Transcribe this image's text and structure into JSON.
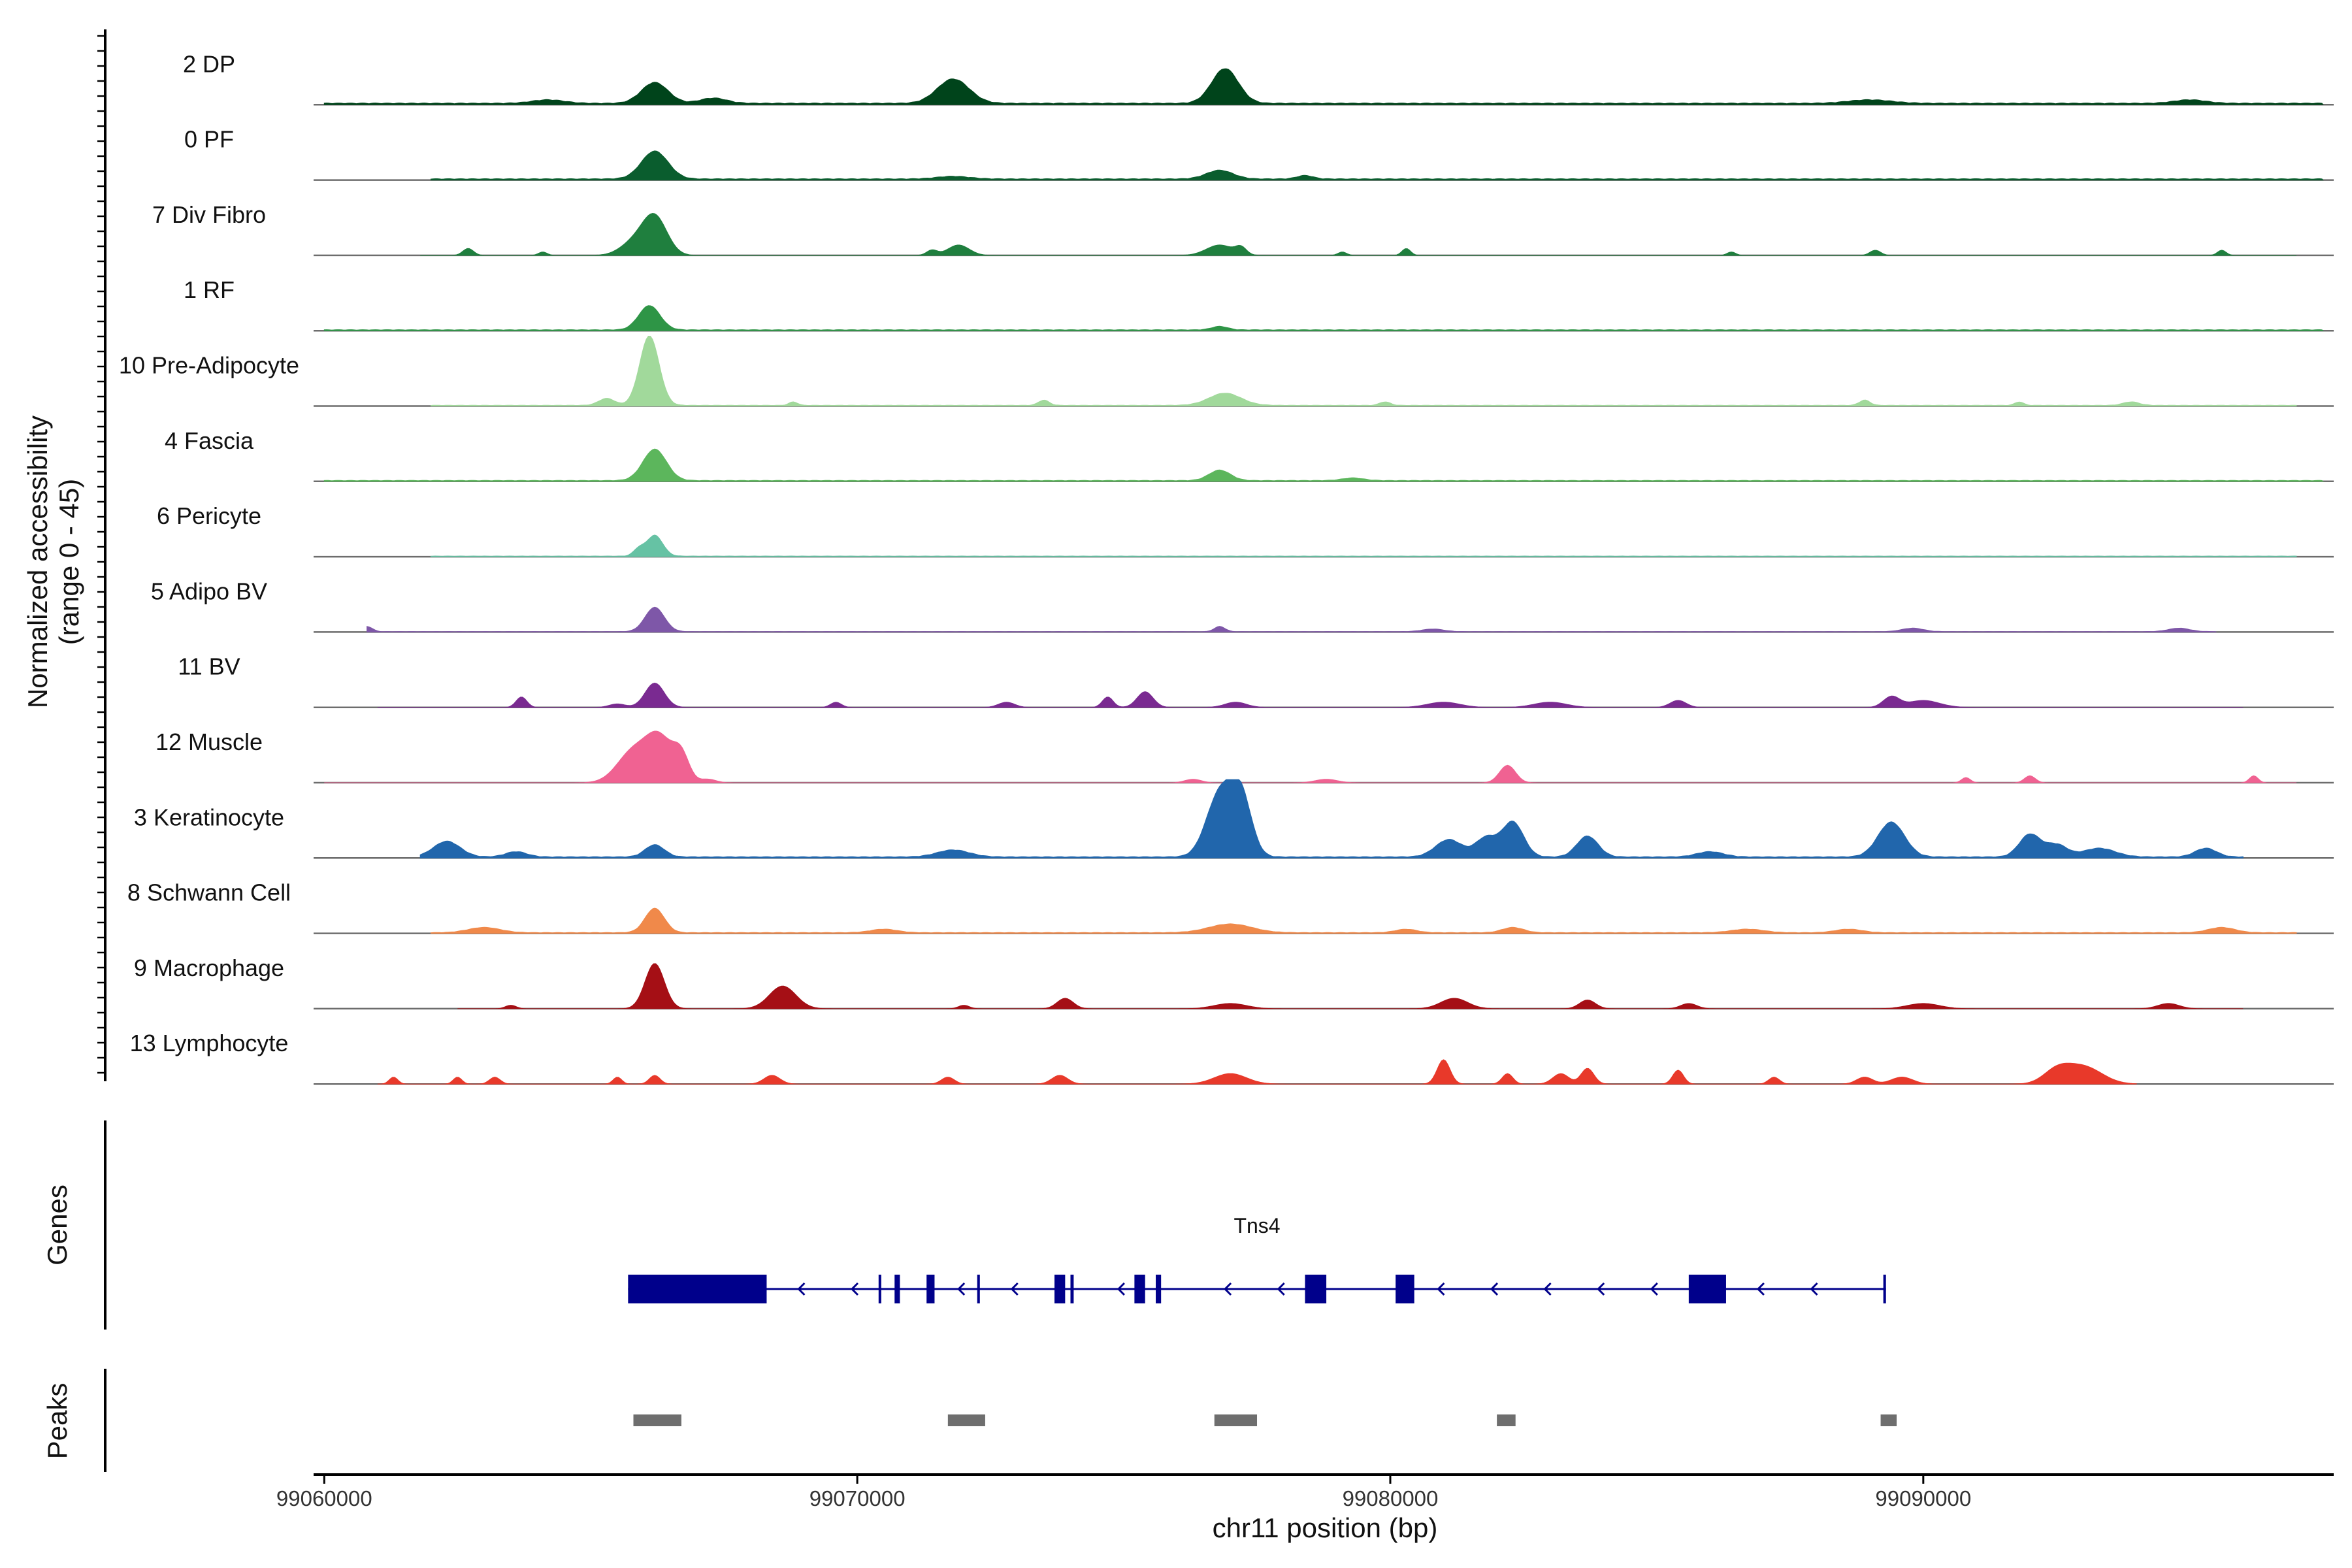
{
  "chart_data": {
    "type": "area",
    "y_axis_title_line1": "Normalized accessibility",
    "y_axis_title_line2": "(range 0 - 45)",
    "ylim": [
      0,
      45
    ],
    "xlabel": "chr11 position (bp)",
    "xlim": [
      99059800,
      99097700
    ],
    "x_ticks": [
      {
        "value": 99060000,
        "label": "99060000"
      },
      {
        "value": 99070000,
        "label": "99070000"
      },
      {
        "value": 99080000,
        "label": "99080000"
      },
      {
        "value": 99090000,
        "label": "99090000"
      }
    ],
    "tracks": [
      {
        "name": "2 DP",
        "color": "#00441b",
        "baseline": 1,
        "start": 99060000,
        "end": 99097500,
        "peaks": [
          [
            99066200,
            12,
            250
          ],
          [
            99071800,
            14,
            300
          ],
          [
            99067300,
            3,
            250
          ],
          [
            99076900,
            20,
            250
          ],
          [
            99064200,
            2,
            300
          ],
          [
            99089000,
            2,
            400
          ],
          [
            99095000,
            2,
            300
          ]
        ]
      },
      {
        "name": "0 PF",
        "color": "#0a5d2e",
        "baseline": 0.8,
        "start": 99062000,
        "end": 99097500,
        "peaks": [
          [
            99066200,
            16,
            250
          ],
          [
            99076800,
            5,
            250
          ],
          [
            99071800,
            1.5,
            300
          ],
          [
            99078400,
            2,
            150
          ]
        ]
      },
      {
        "name": "7 Div Fibro",
        "color": "#1f7f3e",
        "baseline": 0,
        "start": 99061800,
        "end": 99097000,
        "peaks": [
          [
            99066200,
            22,
            230
          ],
          [
            99065800,
            7,
            250
          ],
          [
            99062700,
            4,
            100
          ],
          [
            99071900,
            6,
            200
          ],
          [
            99071400,
            3,
            100
          ],
          [
            99076800,
            6,
            250
          ],
          [
            99077200,
            4,
            100
          ],
          [
            99080300,
            4,
            80
          ],
          [
            99079100,
            2,
            80
          ],
          [
            99089100,
            3,
            100
          ],
          [
            99095600,
            3,
            80
          ],
          [
            99086400,
            2,
            80
          ],
          [
            99064100,
            2,
            80
          ]
        ]
      },
      {
        "name": "1 RF",
        "color": "#2e9546",
        "baseline": 0.6,
        "start": 99060000,
        "end": 99097500,
        "peaks": [
          [
            99066100,
            14,
            200
          ],
          [
            99076800,
            2,
            150
          ]
        ]
      },
      {
        "name": "10 Pre-Adipocyte",
        "color": "#a1d99b",
        "baseline": 0.5,
        "start": 99062000,
        "end": 99097000,
        "peaks": [
          [
            99066100,
            40,
            180
          ],
          [
            99065300,
            4,
            150
          ],
          [
            99076900,
            7,
            300
          ],
          [
            99068800,
            2,
            80
          ],
          [
            99073500,
            3,
            100
          ],
          [
            99079900,
            2,
            100
          ],
          [
            99088900,
            3,
            100
          ],
          [
            99091800,
            2,
            80
          ],
          [
            99093900,
            2,
            150
          ]
        ]
      },
      {
        "name": "4 Fascia",
        "color": "#5cb65c",
        "baseline": 0.6,
        "start": 99060000,
        "end": 99097500,
        "peaks": [
          [
            99066200,
            18,
            220
          ],
          [
            99076800,
            6,
            200
          ],
          [
            99079300,
            1.5,
            200
          ]
        ]
      },
      {
        "name": "6 Pericyte",
        "color": "#66c2a4",
        "baseline": 0.4,
        "start": 99062000,
        "end": 99097000,
        "peaks": [
          [
            99066200,
            12,
            150
          ],
          [
            99065900,
            4,
            100
          ]
        ]
      },
      {
        "name": "5 Adipo BV",
        "color": "#7e57a8",
        "baseline": 0.3,
        "start": 99060800,
        "end": 99095500,
        "peaks": [
          [
            99066200,
            14,
            180
          ],
          [
            99060800,
            3,
            100
          ],
          [
            99076800,
            3,
            100
          ],
          [
            99080800,
            1.5,
            200
          ],
          [
            99094800,
            2,
            200
          ],
          [
            99089800,
            2,
            200
          ]
        ]
      },
      {
        "name": "11 BV",
        "color": "#7a2a91",
        "baseline": 0,
        "start": 99061000,
        "end": 99096000,
        "peaks": [
          [
            99066200,
            14,
            180
          ],
          [
            99063700,
            6,
            100
          ],
          [
            99075400,
            9,
            150
          ],
          [
            99074700,
            6,
            100
          ],
          [
            99081000,
            3,
            300
          ],
          [
            99083000,
            3,
            300
          ],
          [
            99089400,
            6,
            150
          ],
          [
            99090000,
            4,
            300
          ],
          [
            99085400,
            4,
            150
          ],
          [
            99069600,
            3,
            100
          ],
          [
            99077100,
            3,
            200
          ],
          [
            99072800,
            3,
            150
          ],
          [
            99065500,
            2,
            150
          ]
        ]
      },
      {
        "name": "12 Muscle",
        "color": "#f06292",
        "baseline": 0,
        "start": 99060000,
        "end": 99097000,
        "peaks": [
          [
            99065800,
            18,
            300
          ],
          [
            99066300,
            24,
            250
          ],
          [
            99066700,
            14,
            150
          ],
          [
            99082200,
            10,
            150
          ],
          [
            99092000,
            4,
            100
          ],
          [
            99090800,
            3,
            80
          ],
          [
            99096200,
            4,
            80
          ],
          [
            99067200,
            2,
            150
          ],
          [
            99076300,
            2,
            150
          ],
          [
            99078800,
            2,
            200
          ]
        ]
      },
      {
        "name": "3 Keratinocyte",
        "color": "#2166ac",
        "baseline": 0.8,
        "start": 99061800,
        "end": 99096000,
        "peaks": [
          [
            99062300,
            9,
            250
          ],
          [
            99066200,
            7,
            180
          ],
          [
            99071800,
            4,
            300
          ],
          [
            99076800,
            36,
            250
          ],
          [
            99077200,
            33,
            200
          ],
          [
            99081100,
            10,
            250
          ],
          [
            99081800,
            11,
            200
          ],
          [
            99082300,
            20,
            200
          ],
          [
            99083700,
            12,
            200
          ],
          [
            99089400,
            20,
            250
          ],
          [
            99092000,
            13,
            200
          ],
          [
            99092500,
            7,
            200
          ],
          [
            99093300,
            5,
            300
          ],
          [
            99095300,
            5,
            200
          ],
          [
            99063600,
            3,
            200
          ],
          [
            99086000,
            3,
            250
          ]
        ]
      },
      {
        "name": "8 Schwann Cell",
        "color": "#f0894a",
        "baseline": 0.5,
        "start": 99062000,
        "end": 99097000,
        "peaks": [
          [
            99066200,
            14,
            180
          ],
          [
            99077000,
            5,
            400
          ],
          [
            99063000,
            3,
            300
          ],
          [
            99082300,
            3,
            200
          ],
          [
            99095600,
            3,
            250
          ],
          [
            99086700,
            2,
            300
          ],
          [
            99080300,
            2,
            200
          ],
          [
            99070500,
            2,
            250
          ],
          [
            99088600,
            2,
            250
          ]
        ]
      },
      {
        "name": "9 Macrophage",
        "color": "#a50f15",
        "baseline": 0,
        "start": 99062500,
        "end": 99096000,
        "peaks": [
          [
            99066200,
            26,
            180
          ],
          [
            99068600,
            13,
            250
          ],
          [
            99073900,
            6,
            150
          ],
          [
            99081200,
            6,
            250
          ],
          [
            99083700,
            5,
            150
          ],
          [
            99077000,
            3,
            300
          ],
          [
            99085600,
            3,
            150
          ],
          [
            99090000,
            3,
            300
          ],
          [
            99094600,
            3,
            200
          ],
          [
            99072000,
            2,
            100
          ],
          [
            99063500,
            2,
            100
          ]
        ]
      },
      {
        "name": "13 Lymphocyte",
        "color": "#e8392a",
        "baseline": 0,
        "start": 99061000,
        "end": 99094000,
        "peaks": [
          [
            99081000,
            14,
            120
          ],
          [
            99093000,
            10,
            350
          ],
          [
            99092500,
            7,
            250
          ],
          [
            99083700,
            9,
            120
          ],
          [
            99085400,
            8,
            100
          ],
          [
            99083200,
            6,
            150
          ],
          [
            99066200,
            5,
            100
          ],
          [
            99068400,
            5,
            150
          ],
          [
            99077000,
            6,
            300
          ],
          [
            99082200,
            6,
            100
          ],
          [
            99089600,
            4,
            200
          ],
          [
            99088900,
            4,
            150
          ],
          [
            99073800,
            5,
            150
          ],
          [
            99063200,
            4,
            100
          ],
          [
            99061300,
            4,
            80
          ],
          [
            99062500,
            4,
            80
          ],
          [
            99065500,
            4,
            80
          ],
          [
            99071700,
            4,
            120
          ],
          [
            99087200,
            4,
            100
          ]
        ]
      }
    ],
    "genes_panel_label": "Genes",
    "gene": {
      "name": "Tns4",
      "color": "#00008b",
      "start": 99065700,
      "end": 99089300,
      "strand": "-",
      "exons": [
        [
          99065700,
          99068300
        ],
        [
          99070400,
          99070450
        ],
        [
          99070700,
          99070800
        ],
        [
          99071300,
          99071450
        ],
        [
          99072250,
          99072300
        ],
        [
          99073700,
          99073900
        ],
        [
          99074000,
          99074060
        ],
        [
          99075200,
          99075400
        ],
        [
          99075600,
          99075700
        ],
        [
          99078400,
          99078800
        ],
        [
          99080100,
          99080450
        ],
        [
          99085600,
          99086300
        ],
        [
          99089250,
          99089300
        ]
      ]
    },
    "peaks_panel_label": "Peaks",
    "peaks_color": "#6e6e6e",
    "peak_regions": [
      [
        99065800,
        99066700
      ],
      [
        99071700,
        99072400
      ],
      [
        99076700,
        99077500
      ],
      [
        99082000,
        99082350
      ],
      [
        99089200,
        99089500
      ]
    ]
  }
}
